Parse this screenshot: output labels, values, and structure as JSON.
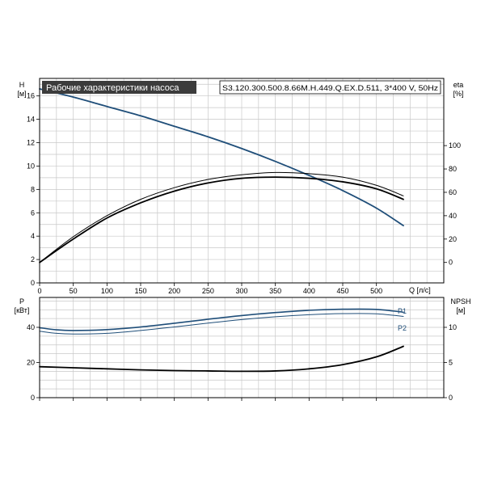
{
  "chart_data": {
    "type": "line",
    "title": "Рабочие характеристики насоса",
    "model_label": "S3.120.300.500.8.66M.H.449.Q.EX.D.511, 3*400 V, 50Hz",
    "colors": {
      "accent": "#1f4e79",
      "black": "#000000",
      "grid": "#c8c8c8",
      "title_bg": "#3c3c3c",
      "title_fg": "#ffffff"
    },
    "grid": true,
    "top_panel": {
      "left_axis": {
        "label_line1": "H",
        "label_line2": "[м]",
        "ylim": [
          0,
          17.5
        ],
        "ticks": [
          0,
          2,
          4,
          6,
          8,
          10,
          12,
          14,
          16
        ]
      },
      "right_axis": {
        "label_line1": "eta",
        "label_line2": "[%]",
        "ylim": [
          -17.5,
          157.5
        ],
        "ticks": [
          0,
          20,
          40,
          60,
          80,
          100
        ]
      },
      "x_axis": {
        "label": "Q [л/с]",
        "xlim": [
          0,
          600
        ],
        "ticks": [
          0,
          50,
          100,
          150,
          200,
          250,
          300,
          350,
          400,
          450,
          500
        ]
      },
      "series": [
        {
          "name": "",
          "axis": "left",
          "color": "#1f4e79",
          "width": 1.8,
          "x": [
            0,
            50,
            100,
            150,
            200,
            250,
            300,
            350,
            400,
            450,
            500,
            540
          ],
          "y": [
            16.6,
            15.9,
            15.1,
            14.3,
            13.4,
            12.5,
            11.5,
            10.4,
            9.2,
            7.9,
            6.4,
            4.9
          ]
        },
        {
          "name": "",
          "axis": "right",
          "color": "#000000",
          "width": 1.0,
          "x": [
            0,
            50,
            100,
            150,
            200,
            250,
            300,
            350,
            400,
            450,
            500,
            540
          ],
          "y": [
            0,
            22,
            40,
            54,
            64,
            71,
            75,
            77,
            76,
            73,
            66,
            57
          ]
        },
        {
          "name": "",
          "axis": "right",
          "color": "#000000",
          "width": 1.8,
          "x": [
            0,
            50,
            100,
            150,
            200,
            250,
            300,
            350,
            400,
            450,
            500,
            540
          ],
          "y": [
            0,
            20,
            38,
            51,
            61,
            68,
            72,
            73,
            72,
            69,
            63,
            54
          ]
        }
      ]
    },
    "bottom_panel": {
      "left_axis": {
        "label_line1": "P",
        "label_line2": "[кВт]",
        "ylim": [
          0,
          57
        ],
        "ticks": [
          0,
          20,
          40
        ]
      },
      "right_axis": {
        "label_line1": "NPSH",
        "label_line2": "[м]",
        "ylim": [
          0,
          14.25
        ],
        "ticks": [
          0,
          5,
          10
        ]
      },
      "x_axis": {
        "xlim": [
          0,
          600
        ]
      },
      "series": [
        {
          "name": "P1",
          "axis": "left",
          "color": "#1f4e79",
          "width": 1.6,
          "x": [
            0,
            25,
            50,
            100,
            150,
            200,
            250,
            300,
            350,
            400,
            450,
            500,
            540
          ],
          "y": [
            39.8,
            38.6,
            38.2,
            38.7,
            40.2,
            42.3,
            44.6,
            46.7,
            48.4,
            49.7,
            50.3,
            50.2,
            48.6
          ]
        },
        {
          "name": "P2",
          "axis": "left",
          "color": "#1f4e79",
          "width": 1.0,
          "x": [
            0,
            25,
            50,
            100,
            150,
            200,
            250,
            300,
            350,
            400,
            450,
            500,
            540
          ],
          "y": [
            37.8,
            36.6,
            36.2,
            36.6,
            38.2,
            40.2,
            42.4,
            44.4,
            46.0,
            47.2,
            47.8,
            47.7,
            46.2
          ]
        },
        {
          "name": "",
          "axis": "right",
          "color": "#000000",
          "width": 1.8,
          "x": [
            0,
            50,
            100,
            150,
            200,
            250,
            300,
            350,
            400,
            450,
            500,
            540
          ],
          "y": [
            4.4,
            4.25,
            4.1,
            3.95,
            3.85,
            3.8,
            3.75,
            3.8,
            4.1,
            4.7,
            5.8,
            7.3
          ]
        }
      ]
    }
  }
}
